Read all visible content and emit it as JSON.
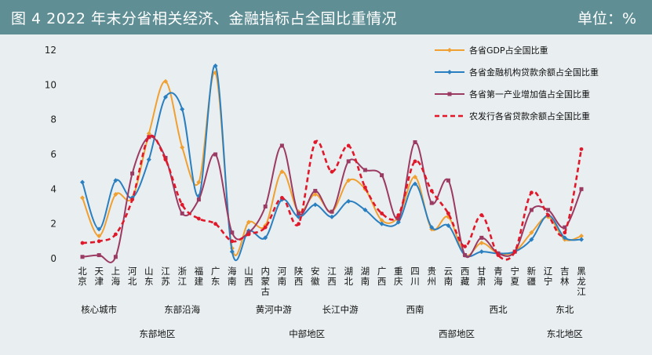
{
  "header": {
    "title": "图 4    2022 年末分省相关经济、金融指标占全国比重情况",
    "unit": "单位：%"
  },
  "colors": {
    "header_bg": "#5f8f95",
    "gdp": "#f0a030",
    "loan": "#2a7fc0",
    "agri": "#9b3a62",
    "adbc": "#e0182a"
  },
  "chart_data": {
    "type": "line",
    "title": "图 4    2022 年末分省相关经济、金融指标占全国比重情况",
    "unit": "单位：%",
    "ylim": [
      0,
      12
    ],
    "yticks": [
      "0",
      "2",
      "4",
      "6",
      "8",
      "10",
      "12"
    ],
    "grid": false,
    "legend_position": "top-right",
    "categories": [
      "北京",
      "天津",
      "上海",
      "河北",
      "山东",
      "江苏",
      "浙江",
      "福建",
      "广东",
      "海南",
      "山西",
      "内蒙古",
      "河南",
      "陕西",
      "安徽",
      "江西",
      "湖北",
      "湖南",
      "广西",
      "重庆",
      "四川",
      "贵州",
      "云南",
      "西藏",
      "甘肃",
      "青海",
      "宁夏",
      "新疆",
      "辽宁",
      "吉林",
      "黑龙江"
    ],
    "category_labels": [
      "北京",
      "天津",
      "上海",
      "河北",
      "山东",
      "江苏",
      "浙江",
      "福建",
      "广东",
      "海南",
      "山西",
      "内蒙古",
      "河南",
      "陕西",
      "安徽",
      "江西",
      "湖北",
      "湖南",
      "广西",
      "重庆",
      "四川",
      "贵州",
      "云南",
      "西藏",
      "甘肃",
      "青海",
      "宁夏",
      "新疆",
      "辽宁",
      "吉林",
      "黑龙江"
    ],
    "series": [
      {
        "name": "各省GDP占全国比重",
        "key": "gdp",
        "values": [
          3.5,
          1.3,
          3.7,
          3.5,
          7.2,
          10.2,
          6.4,
          4.4,
          10.7,
          0.6,
          2.1,
          1.9,
          5.0,
          2.7,
          3.7,
          2.7,
          4.5,
          4.0,
          2.2,
          2.4,
          4.7,
          1.7,
          2.4,
          0.2,
          0.9,
          0.3,
          0.4,
          1.5,
          2.4,
          1.1,
          1.3
        ]
      },
      {
        "name": "各省金融机构贷款余额占全国比重",
        "key": "loan",
        "values": [
          4.4,
          1.7,
          4.5,
          3.5,
          5.7,
          9.3,
          8.6,
          3.6,
          11.1,
          0.4,
          1.6,
          1.2,
          3.4,
          2.4,
          3.1,
          2.4,
          3.3,
          2.8,
          2.0,
          2.1,
          4.3,
          1.8,
          1.9,
          0.2,
          0.4,
          0.3,
          0.4,
          1.1,
          2.5,
          1.2,
          1.1
        ]
      },
      {
        "name": "各省第一产业增加值占全国比重",
        "key": "agri",
        "values": [
          0.1,
          0.2,
          0.1,
          4.9,
          7.0,
          5.8,
          2.6,
          3.4,
          6.0,
          1.5,
          1.5,
          3.0,
          6.5,
          2.6,
          3.9,
          2.7,
          5.6,
          5.1,
          4.8,
          2.3,
          6.7,
          3.2,
          4.5,
          0.2,
          1.2,
          0.3,
          0.4,
          2.8,
          2.8,
          1.8,
          4.0
        ]
      },
      {
        "name": "农发行各省贷款余额占全国比重",
        "key": "adbc",
        "values": [
          0.9,
          1.0,
          1.4,
          3.4,
          7.0,
          5.7,
          3.1,
          2.3,
          2.0,
          1.0,
          1.4,
          1.8,
          3.5,
          2.0,
          6.7,
          5.0,
          6.5,
          4.1,
          2.6,
          2.5,
          5.6,
          3.9,
          2.6,
          0.7,
          2.5,
          0.2,
          0.4,
          3.8,
          2.5,
          1.5,
          6.3
        ]
      }
    ],
    "subgroups": [
      {
        "label": "核心城市",
        "from": 0,
        "to": 2
      },
      {
        "label": "东部沿海",
        "from": 3,
        "to": 9
      },
      {
        "label": "黄河中游",
        "from": 10,
        "to": 13
      },
      {
        "label": "长江中游",
        "from": 14,
        "to": 17
      },
      {
        "label": "西南",
        "from": 18,
        "to": 22
      },
      {
        "label": "西北",
        "from": 23,
        "to": 27
      },
      {
        "label": "东北",
        "from": 28,
        "to": 30
      }
    ],
    "regions": [
      {
        "label": "东部地区",
        "from": 0,
        "to": 9
      },
      {
        "label": "中部地区",
        "from": 10,
        "to": 17
      },
      {
        "label": "西部地区",
        "from": 18,
        "to": 27
      },
      {
        "label": "东北地区",
        "from": 28,
        "to": 30
      }
    ]
  }
}
